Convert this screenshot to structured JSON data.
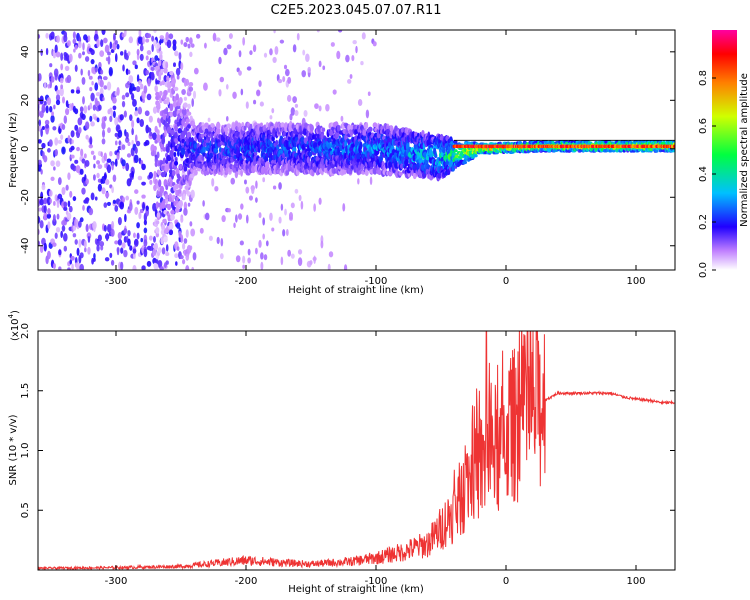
{
  "title": "C2E5.2023.045.07.07.R11",
  "chart_data": [
    {
      "type": "heatmap",
      "xlabel": "Height of straight line (km)",
      "ylabel": "Frequency (Hz)",
      "xlim": [
        -360,
        130
      ],
      "ylim": [
        -50,
        49
      ],
      "xticks": [
        -300,
        -200,
        -100,
        0,
        100
      ],
      "yticks": [
        -40,
        -20,
        0,
        20,
        40
      ],
      "colorbar": {
        "label": "Normalized spectral amplitude",
        "range": [
          0,
          1
        ],
        "ticks": [
          "0.0",
          "0.2",
          "0.4",
          "0.6",
          "0.8"
        ]
      },
      "description_points": [
        {
          "x": -360,
          "fmin": -50,
          "fmax": 49,
          "amp": 0.08
        },
        {
          "x": -270,
          "fmin": -50,
          "fmax": 49,
          "amp": 0.08
        },
        {
          "x": -240,
          "fmin": -10,
          "fmax": 10,
          "amp": 0.18
        },
        {
          "x": -100,
          "fmin": -10,
          "fmax": 10,
          "amp": 0.22
        },
        {
          "x": -50,
          "fmin": -12,
          "fmax": 5,
          "amp": 0.3
        },
        {
          "x": -20,
          "fmin": -2,
          "fmax": 2,
          "amp": 0.6
        },
        {
          "x": 30,
          "fmin": -1,
          "fmax": 3,
          "amp": 0.55
        },
        {
          "x": 130,
          "fmin": -1,
          "fmax": 3,
          "amp": 0.6
        }
      ]
    },
    {
      "type": "line",
      "xlabel": "Height of straight line (km)",
      "ylabel": "SNR (10 * v/v)",
      "yscale_label": "(x10",
      "yscale_exp": "4",
      "xlim": [
        -360,
        130
      ],
      "ylim": [
        0,
        20000
      ],
      "xticks": [
        -300,
        -200,
        -100,
        0,
        100
      ],
      "yticks": [
        5000,
        10000,
        15000,
        20000
      ],
      "ytick_labels": [
        "0.5",
        "1.0",
        "1.5",
        "2.0"
      ],
      "color": "#ee3333",
      "series": [
        {
          "x": [
            -360,
            -300,
            -250,
            -230,
            -200,
            -170,
            -150,
            -120,
            -100,
            -80,
            -60,
            -50,
            -40,
            -30,
            -25,
            -20,
            -15,
            -10,
            -5,
            0,
            10,
            20,
            30,
            40,
            60,
            80,
            90,
            100,
            110,
            120,
            130
          ],
          "y": [
            150,
            200,
            300,
            500,
            800,
            600,
            500,
            700,
            1000,
            1500,
            2200,
            3500,
            5000,
            7000,
            9000,
            8500,
            9000,
            10500,
            9500,
            11500,
            12500,
            13500,
            14200,
            14800,
            14800,
            14800,
            14500,
            14300,
            14200,
            14000,
            14000
          ]
        }
      ]
    }
  ]
}
